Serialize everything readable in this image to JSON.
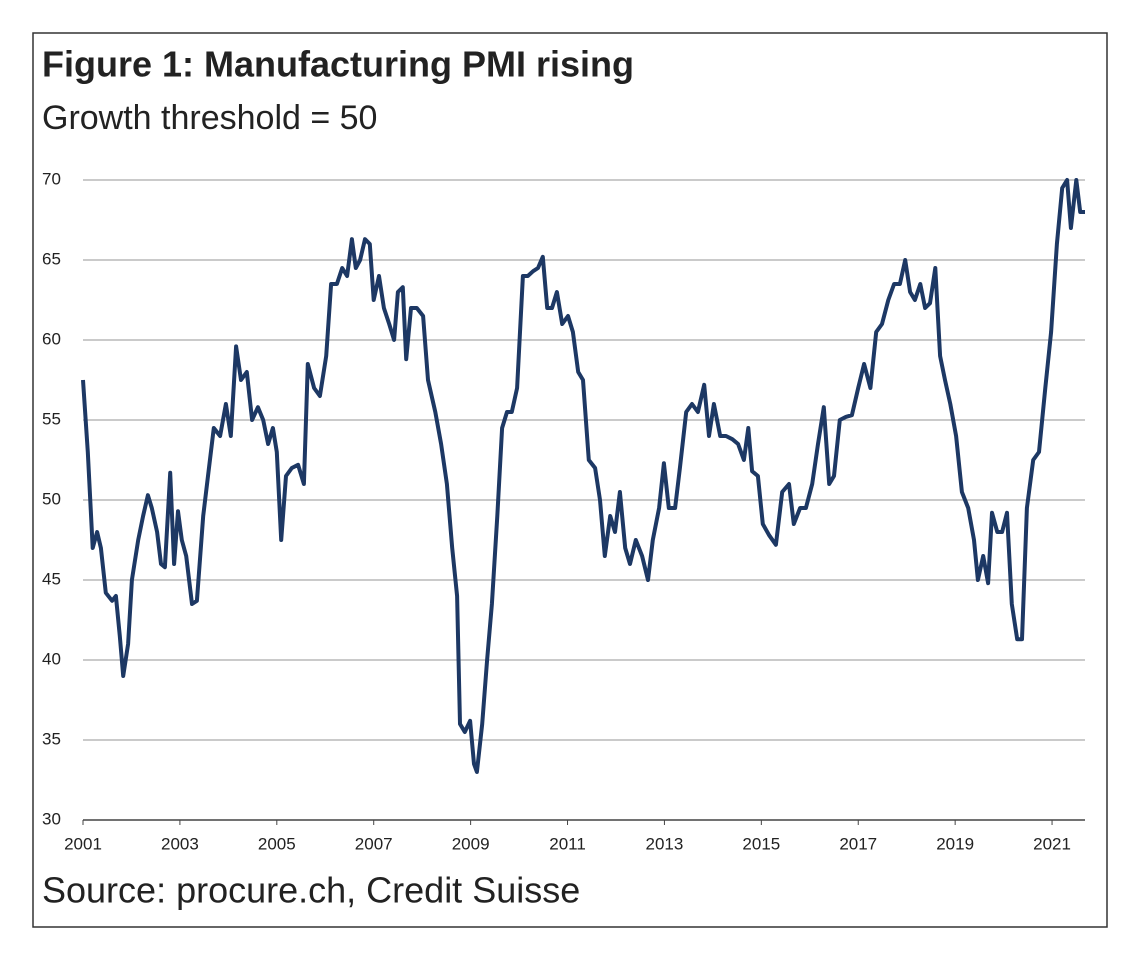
{
  "chart_data": {
    "type": "line",
    "title": "Figure 1: Manufacturing PMI rising",
    "subtitle": "Growth threshold = 50",
    "source": "Source: procure.ch, Credit Suisse",
    "x": [
      2001.0,
      2001.1,
      2001.2,
      2001.29,
      2001.37,
      2001.47,
      2001.6,
      2001.68,
      2001.76,
      2001.83,
      2001.93,
      2002.01,
      2002.14,
      2002.24,
      2002.34,
      2002.42,
      2002.53,
      2002.61,
      2002.69,
      2002.8,
      2002.88,
      2002.96,
      2003.04,
      2003.13,
      2003.25,
      2003.35,
      2003.48,
      2003.58,
      2003.7,
      2003.83,
      2003.95,
      2004.05,
      2004.16,
      2004.26,
      2004.38,
      2004.49,
      2004.61,
      2004.72,
      2004.82,
      2004.92,
      2005.0,
      2005.09,
      2005.19,
      2005.31,
      2005.44,
      2005.56,
      2005.64,
      2005.77,
      2005.89,
      2006.02,
      2006.12,
      2006.24,
      2006.35,
      2006.45,
      2006.55,
      2006.63,
      2006.72,
      2006.82,
      2006.92,
      2007.0,
      2007.11,
      2007.21,
      2007.32,
      2007.42,
      2007.5,
      2007.6,
      2007.67,
      2007.77,
      2007.89,
      2008.02,
      2008.12,
      2008.27,
      2008.39,
      2008.51,
      2008.62,
      2008.72,
      2008.78,
      2008.88,
      2008.99,
      2009.07,
      2009.13,
      2009.24,
      2009.34,
      2009.44,
      2009.55,
      2009.65,
      2009.75,
      2009.85,
      2009.96,
      2010.08,
      2010.18,
      2010.29,
      2010.39,
      2010.49,
      2010.58,
      2010.68,
      2010.78,
      2010.89,
      2011.01,
      2011.11,
      2011.22,
      2011.32,
      2011.44,
      2011.57,
      2011.67,
      2011.77,
      2011.88,
      2011.98,
      2012.08,
      2012.19,
      2012.29,
      2012.41,
      2012.54,
      2012.66,
      2012.76,
      2012.89,
      2012.99,
      2013.09,
      2013.22,
      2013.32,
      2013.45,
      2013.57,
      2013.69,
      2013.82,
      2013.92,
      2014.02,
      2014.15,
      2014.27,
      2014.4,
      2014.52,
      2014.64,
      2014.73,
      2014.81,
      2014.93,
      2015.03,
      2015.16,
      2015.3,
      2015.43,
      2015.57,
      2015.67,
      2015.8,
      2015.92,
      2016.05,
      2016.17,
      2016.29,
      2016.4,
      2016.5,
      2016.62,
      2016.75,
      2016.87,
      2017.0,
      2017.12,
      2017.25,
      2017.37,
      2017.49,
      2017.62,
      2017.74,
      2017.86,
      2017.97,
      2018.07,
      2018.17,
      2018.28,
      2018.38,
      2018.48,
      2018.59,
      2018.69,
      2018.79,
      2018.9,
      2019.02,
      2019.14,
      2019.27,
      2019.39,
      2019.47,
      2019.58,
      2019.68,
      2019.76,
      2019.87,
      2019.97,
      2020.07,
      2020.17,
      2020.28,
      2020.38,
      2020.48,
      2020.61,
      2020.73,
      2020.86,
      2020.98,
      2021.1,
      2021.21,
      2021.31,
      2021.39,
      2021.5,
      2021.58,
      2021.68
    ],
    "series": [
      {
        "name": "Manufacturing PMI",
        "color": "#1d3864",
        "values": [
          57.5,
          53,
          47,
          48,
          47,
          44.2,
          43.7,
          44,
          41.5,
          39,
          41,
          45,
          47.5,
          49,
          50.3,
          49.5,
          48,
          46,
          45.8,
          51.7,
          46,
          49.3,
          47.5,
          46.5,
          43.5,
          43.7,
          49,
          51.5,
          54.5,
          54,
          56,
          54,
          59.6,
          57.5,
          58,
          55,
          55.8,
          55,
          53.5,
          54.5,
          53,
          47.5,
          51.5,
          52,
          52.2,
          51,
          58.5,
          57,
          56.5,
          59,
          63.5,
          63.5,
          64.5,
          64,
          66.3,
          64.5,
          65,
          66.3,
          66,
          62.5,
          64,
          62,
          61,
          60,
          63,
          63.3,
          58.8,
          62,
          62,
          61.5,
          57.5,
          55.5,
          53.5,
          51,
          47,
          44,
          36,
          35.5,
          36.2,
          33.5,
          33,
          36,
          40,
          43.5,
          49,
          54.5,
          55.5,
          55.5,
          57,
          64,
          64,
          64.3,
          64.5,
          65.2,
          62,
          62,
          63,
          61,
          61.5,
          60.5,
          58,
          57.5,
          52.5,
          52,
          50,
          46.5,
          49,
          48,
          50.5,
          47,
          46,
          47.5,
          46.5,
          45,
          47.5,
          49.5,
          52.3,
          49.5,
          49.5,
          52,
          55.5,
          56,
          55.5,
          57.2,
          54,
          56,
          54,
          54,
          53.8,
          53.5,
          52.5,
          54.5,
          51.8,
          51.5,
          48.5,
          47.8,
          47.2,
          50.5,
          51,
          48.5,
          49.5,
          49.5,
          51,
          53.5,
          55.8,
          51,
          51.5,
          55,
          55.2,
          55.3,
          57,
          58.5,
          57,
          60.5,
          61,
          62.5,
          63.5,
          63.5,
          65,
          63,
          62.5,
          63.5,
          62,
          62.3,
          64.5,
          59,
          57.5,
          56,
          54,
          50.5,
          49.5,
          47.5,
          45,
          46.5,
          44.8,
          49.2,
          48,
          48,
          49.2,
          43.5,
          41.3,
          41.3,
          49.5,
          52.5,
          53,
          57,
          60.5,
          66,
          69.5,
          70,
          67,
          70,
          68,
          68
        ]
      }
    ],
    "xlim": [
      2001,
      2021.68
    ],
    "xticks": [
      2001,
      2003,
      2005,
      2007,
      2009,
      2011,
      2013,
      2015,
      2017,
      2019,
      2021
    ],
    "ylim": [
      30,
      70
    ],
    "yticks": [
      30,
      35,
      40,
      45,
      50,
      55,
      60,
      65,
      70
    ],
    "grid": true
  }
}
